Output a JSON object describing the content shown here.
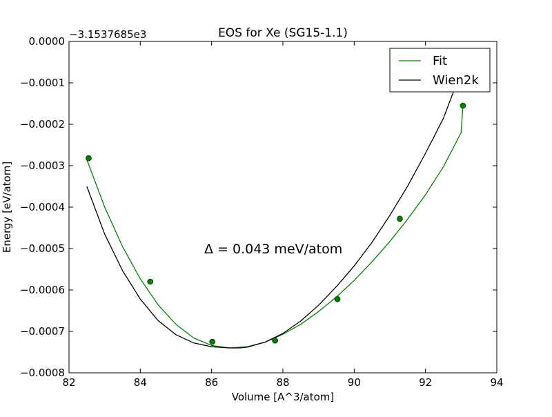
{
  "chart_data": {
    "type": "line",
    "title": "EOS for Xe (SG15-1.1)",
    "xlabel": "Volume [A^3/atom]",
    "ylabel": "Energy [eV/atom]",
    "y_offset_label": "−3.1537685e3",
    "xlim": [
      82,
      94
    ],
    "ylim": [
      -0.0008,
      0.0
    ],
    "x_ticks": [
      82,
      84,
      86,
      88,
      90,
      92,
      94
    ],
    "x_tick_labels": [
      "82",
      "84",
      "86",
      "88",
      "90",
      "92",
      "94"
    ],
    "y_ticks": [
      0.0,
      -0.0001,
      -0.0002,
      -0.0003,
      -0.0004,
      -0.0005,
      -0.0006,
      -0.0007,
      -0.0008
    ],
    "y_tick_labels": [
      "0.0000",
      "−0.0001",
      "−0.0002",
      "−0.0003",
      "−0.0004",
      "−0.0005",
      "−0.0006",
      "−0.0007",
      "−0.0008"
    ],
    "grid": false,
    "legend_position": "top-right",
    "annotation": "Δ = 0.043 meV/atom",
    "series": [
      {
        "name": "Fit",
        "color": "#008000",
        "style": "line",
        "x": [
          82.5,
          83.0,
          83.5,
          84.0,
          84.5,
          85.0,
          85.5,
          86.0,
          86.5,
          87.0,
          87.5,
          88.0,
          88.5,
          89.0,
          89.5,
          90.0,
          90.5,
          91.0,
          91.5,
          92.0,
          92.5,
          93.0,
          93.05
        ],
        "y": [
          -0.000285,
          -0.0004,
          -0.000495,
          -0.000573,
          -0.000636,
          -0.000683,
          -0.000716,
          -0.000734,
          -0.00074,
          -0.000737,
          -0.000726,
          -0.000707,
          -0.000683,
          -0.000652,
          -0.000617,
          -0.000577,
          -0.000532,
          -0.000483,
          -0.000429,
          -0.00037,
          -0.000303,
          -0.00022,
          -0.000155
        ]
      },
      {
        "name": "Wien2k",
        "color": "#000000",
        "style": "line",
        "x": [
          82.5,
          83.0,
          83.5,
          84.0,
          84.5,
          85.0,
          85.5,
          86.0,
          86.5,
          86.8,
          87.0,
          87.5,
          88.0,
          88.5,
          89.0,
          89.5,
          90.0,
          90.5,
          91.0,
          91.5,
          92.0,
          92.5,
          92.8
        ],
        "y": [
          -0.00035,
          -0.000465,
          -0.000553,
          -0.000622,
          -0.000674,
          -0.000708,
          -0.000728,
          -0.000737,
          -0.00074,
          -0.00074,
          -0.000738,
          -0.000726,
          -0.000705,
          -0.000675,
          -0.000637,
          -0.000592,
          -0.000542,
          -0.000485,
          -0.00042,
          -0.000349,
          -0.00027,
          -0.000186,
          -0.000118
        ]
      },
      {
        "name": "",
        "color": "#008000",
        "style": "points",
        "x": [
          82.55,
          84.28,
          86.02,
          87.78,
          89.53,
          91.28,
          93.05
        ],
        "y": [
          -0.000282,
          -0.00058,
          -0.000725,
          -0.000722,
          -0.000622,
          -0.000428,
          -0.000155
        ]
      }
    ]
  }
}
